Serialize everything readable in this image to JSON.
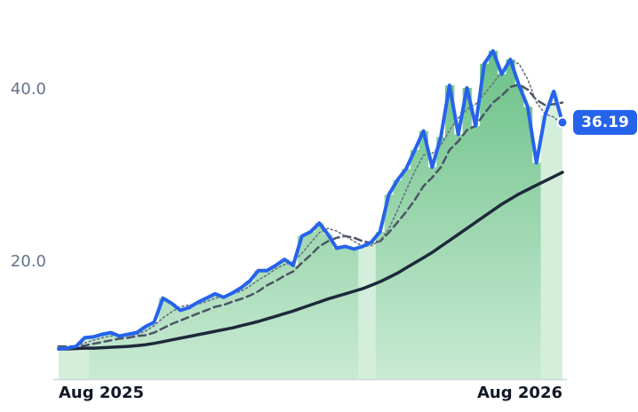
{
  "chart_data": {
    "type": "line",
    "categories": [
      "Aug 2025",
      null,
      null,
      null,
      null,
      null,
      null,
      null,
      null,
      null,
      null,
      null,
      null,
      null,
      null,
      null,
      null,
      null,
      null,
      null,
      null,
      null,
      null,
      null,
      null,
      null,
      null,
      null,
      null,
      null,
      null,
      null,
      null,
      null,
      null,
      null,
      null,
      null,
      null,
      null,
      null,
      null,
      null,
      null,
      null,
      null,
      null,
      null,
      null,
      null,
      null,
      null,
      null,
      null,
      null,
      null,
      null,
      null,
      "Aug 2026"
    ],
    "ylim": [
      6.4,
      50.4
    ],
    "yticks": [
      {
        "value": 20,
        "label": "20.0"
      },
      {
        "value": 40,
        "label": "40.0"
      }
    ],
    "grid": false,
    "series": [
      {
        "type": "bar",
        "color": "#7cc995",
        "colors": [
          "#d4eedc",
          "#d4eedc",
          "#d4eedc",
          "#d4eedc",
          "#7cc995",
          "#7cc995",
          "#7cc995",
          "#7cc995",
          "#7cc995",
          "#7cc995",
          "#7cc995",
          "#7cc995",
          "#7cc995",
          "#7cc995",
          "#7cc995",
          "#7cc995",
          "#7cc995",
          "#7cc995",
          "#7cc995",
          "#7cc995",
          "#7cc995",
          "#7cc995",
          "#7cc995",
          "#7cc995",
          "#7cc995",
          "#7cc995",
          "#7cc995",
          "#7cc995",
          "#7cc995",
          "#7cc995",
          "#7cc995",
          "#7cc995",
          "#7cc995",
          "#7cc995",
          "#7cc995",
          "#d4eedc",
          "#d4eedc",
          "#7cc995",
          "#7cc995",
          "#7cc995",
          "#7cc995",
          "#7cc995",
          "#7cc995",
          "#7cc995",
          "#7cc995",
          "#7cc995",
          "#7cc995",
          "#7cc995",
          "#7cc995",
          "#7cc995",
          "#7cc995",
          "#7cc995",
          "#7cc995",
          "#7cc995",
          "#7cc995",
          "#7cc995",
          "#d4eedc",
          "#d4eedc",
          "#d4eedc"
        ],
        "values": [
          9.9,
          10.0,
          10.2,
          11.2,
          11.3,
          11.6,
          11.8,
          11.4,
          11.6,
          11.8,
          12.5,
          13.0,
          15.8,
          15.2,
          14.4,
          14.7,
          15.3,
          15.8,
          16.3,
          15.9,
          16.4,
          17.0,
          17.8,
          19.0,
          19.0,
          19.6,
          20.3,
          19.6,
          23.0,
          23.5,
          24.5,
          23.2,
          21.6,
          21.8,
          21.5,
          21.8,
          22.3,
          23.5,
          27.8,
          29.5,
          30.8,
          33.0,
          35.2,
          31.0,
          34.5,
          40.5,
          34.8,
          40.2,
          35.8,
          43.0,
          44.5,
          41.8,
          43.5,
          40.5,
          38.0,
          31.5,
          37.0,
          39.8,
          36.19
        ]
      },
      {
        "color": "#1e293b",
        "width": 3.5,
        "dash": "none",
        "values": [
          9.9,
          9.9,
          9.95,
          10,
          10,
          10.05,
          10.1,
          10.15,
          10.2,
          10.3,
          10.4,
          10.55,
          10.75,
          10.95,
          11.15,
          11.35,
          11.55,
          11.75,
          11.95,
          12.15,
          12.35,
          12.6,
          12.85,
          13.1,
          13.4,
          13.7,
          14.0,
          14.3,
          14.65,
          15.0,
          15.35,
          15.7,
          16.0,
          16.3,
          16.6,
          16.9,
          17.3,
          17.7,
          18.2,
          18.7,
          19.3,
          19.9,
          20.5,
          21.1,
          21.8,
          22.5,
          23.2,
          23.9,
          24.6,
          25.3,
          26.0,
          26.7,
          27.3,
          27.9,
          28.4,
          28.9,
          29.4,
          29.9,
          30.4
        ]
      },
      {
        "color": "#4b5563",
        "width": 2.5,
        "dash": "8 5",
        "values": [
          10.2,
          10.2,
          10.2,
          10.3,
          10.5,
          10.7,
          10.9,
          11.1,
          11.2,
          11.4,
          11.5,
          11.8,
          12.3,
          12.8,
          13.2,
          13.6,
          14.0,
          14.4,
          14.8,
          15.0,
          15.4,
          15.7,
          16.1,
          16.6,
          17.3,
          17.8,
          18.4,
          18.9,
          19.9,
          20.8,
          21.8,
          22.4,
          22.8,
          23.0,
          22.8,
          22.4,
          22.2,
          22.4,
          23.4,
          24.6,
          25.8,
          27.2,
          28.8,
          29.8,
          31.0,
          33.0,
          34.0,
          35.3,
          35.8,
          37.2,
          38.5,
          39.3,
          40.3,
          40.6,
          40.0,
          38.8,
          38.2,
          38.3,
          38.5
        ]
      },
      {
        "color": "#6b7280",
        "width": 1.6,
        "dash": "2 3",
        "values": [
          10.1,
          10.1,
          10.3,
          10.6,
          10.9,
          11.2,
          11.4,
          11.5,
          11.5,
          11.6,
          12.0,
          12.6,
          13.5,
          14.2,
          14.8,
          15.0,
          15.1,
          15.4,
          15.8,
          16.0,
          16.3,
          16.6,
          17.2,
          17.9,
          18.5,
          19.2,
          19.7,
          20.0,
          21.0,
          22.2,
          23.4,
          23.9,
          23.6,
          23.0,
          22.4,
          21.8,
          21.9,
          22.5,
          23.8,
          26.0,
          28.3,
          30.5,
          32.4,
          32.6,
          33.5,
          35.3,
          36.7,
          37.7,
          38.3,
          39.5,
          40.7,
          42.1,
          43.3,
          43.0,
          41.2,
          38.5,
          37.2,
          36.8,
          36.0
        ]
      },
      {
        "color": "#2563eb",
        "width": 4,
        "dash": "none",
        "last_label": true,
        "values": [
          9.9,
          10.0,
          10.2,
          11.2,
          11.3,
          11.6,
          11.8,
          11.4,
          11.6,
          11.8,
          12.5,
          13.0,
          15.8,
          15.2,
          14.4,
          14.7,
          15.3,
          15.8,
          16.3,
          15.9,
          16.4,
          17.0,
          17.8,
          19.0,
          19.0,
          19.6,
          20.3,
          19.6,
          23.0,
          23.5,
          24.5,
          23.2,
          21.6,
          21.8,
          21.5,
          21.8,
          22.3,
          23.5,
          27.8,
          29.5,
          30.8,
          33.0,
          35.2,
          31.0,
          34.5,
          40.5,
          34.8,
          40.2,
          35.8,
          43.0,
          44.5,
          41.8,
          43.5,
          40.5,
          38.0,
          31.5,
          37.0,
          39.8,
          36.19
        ]
      }
    ]
  }
}
